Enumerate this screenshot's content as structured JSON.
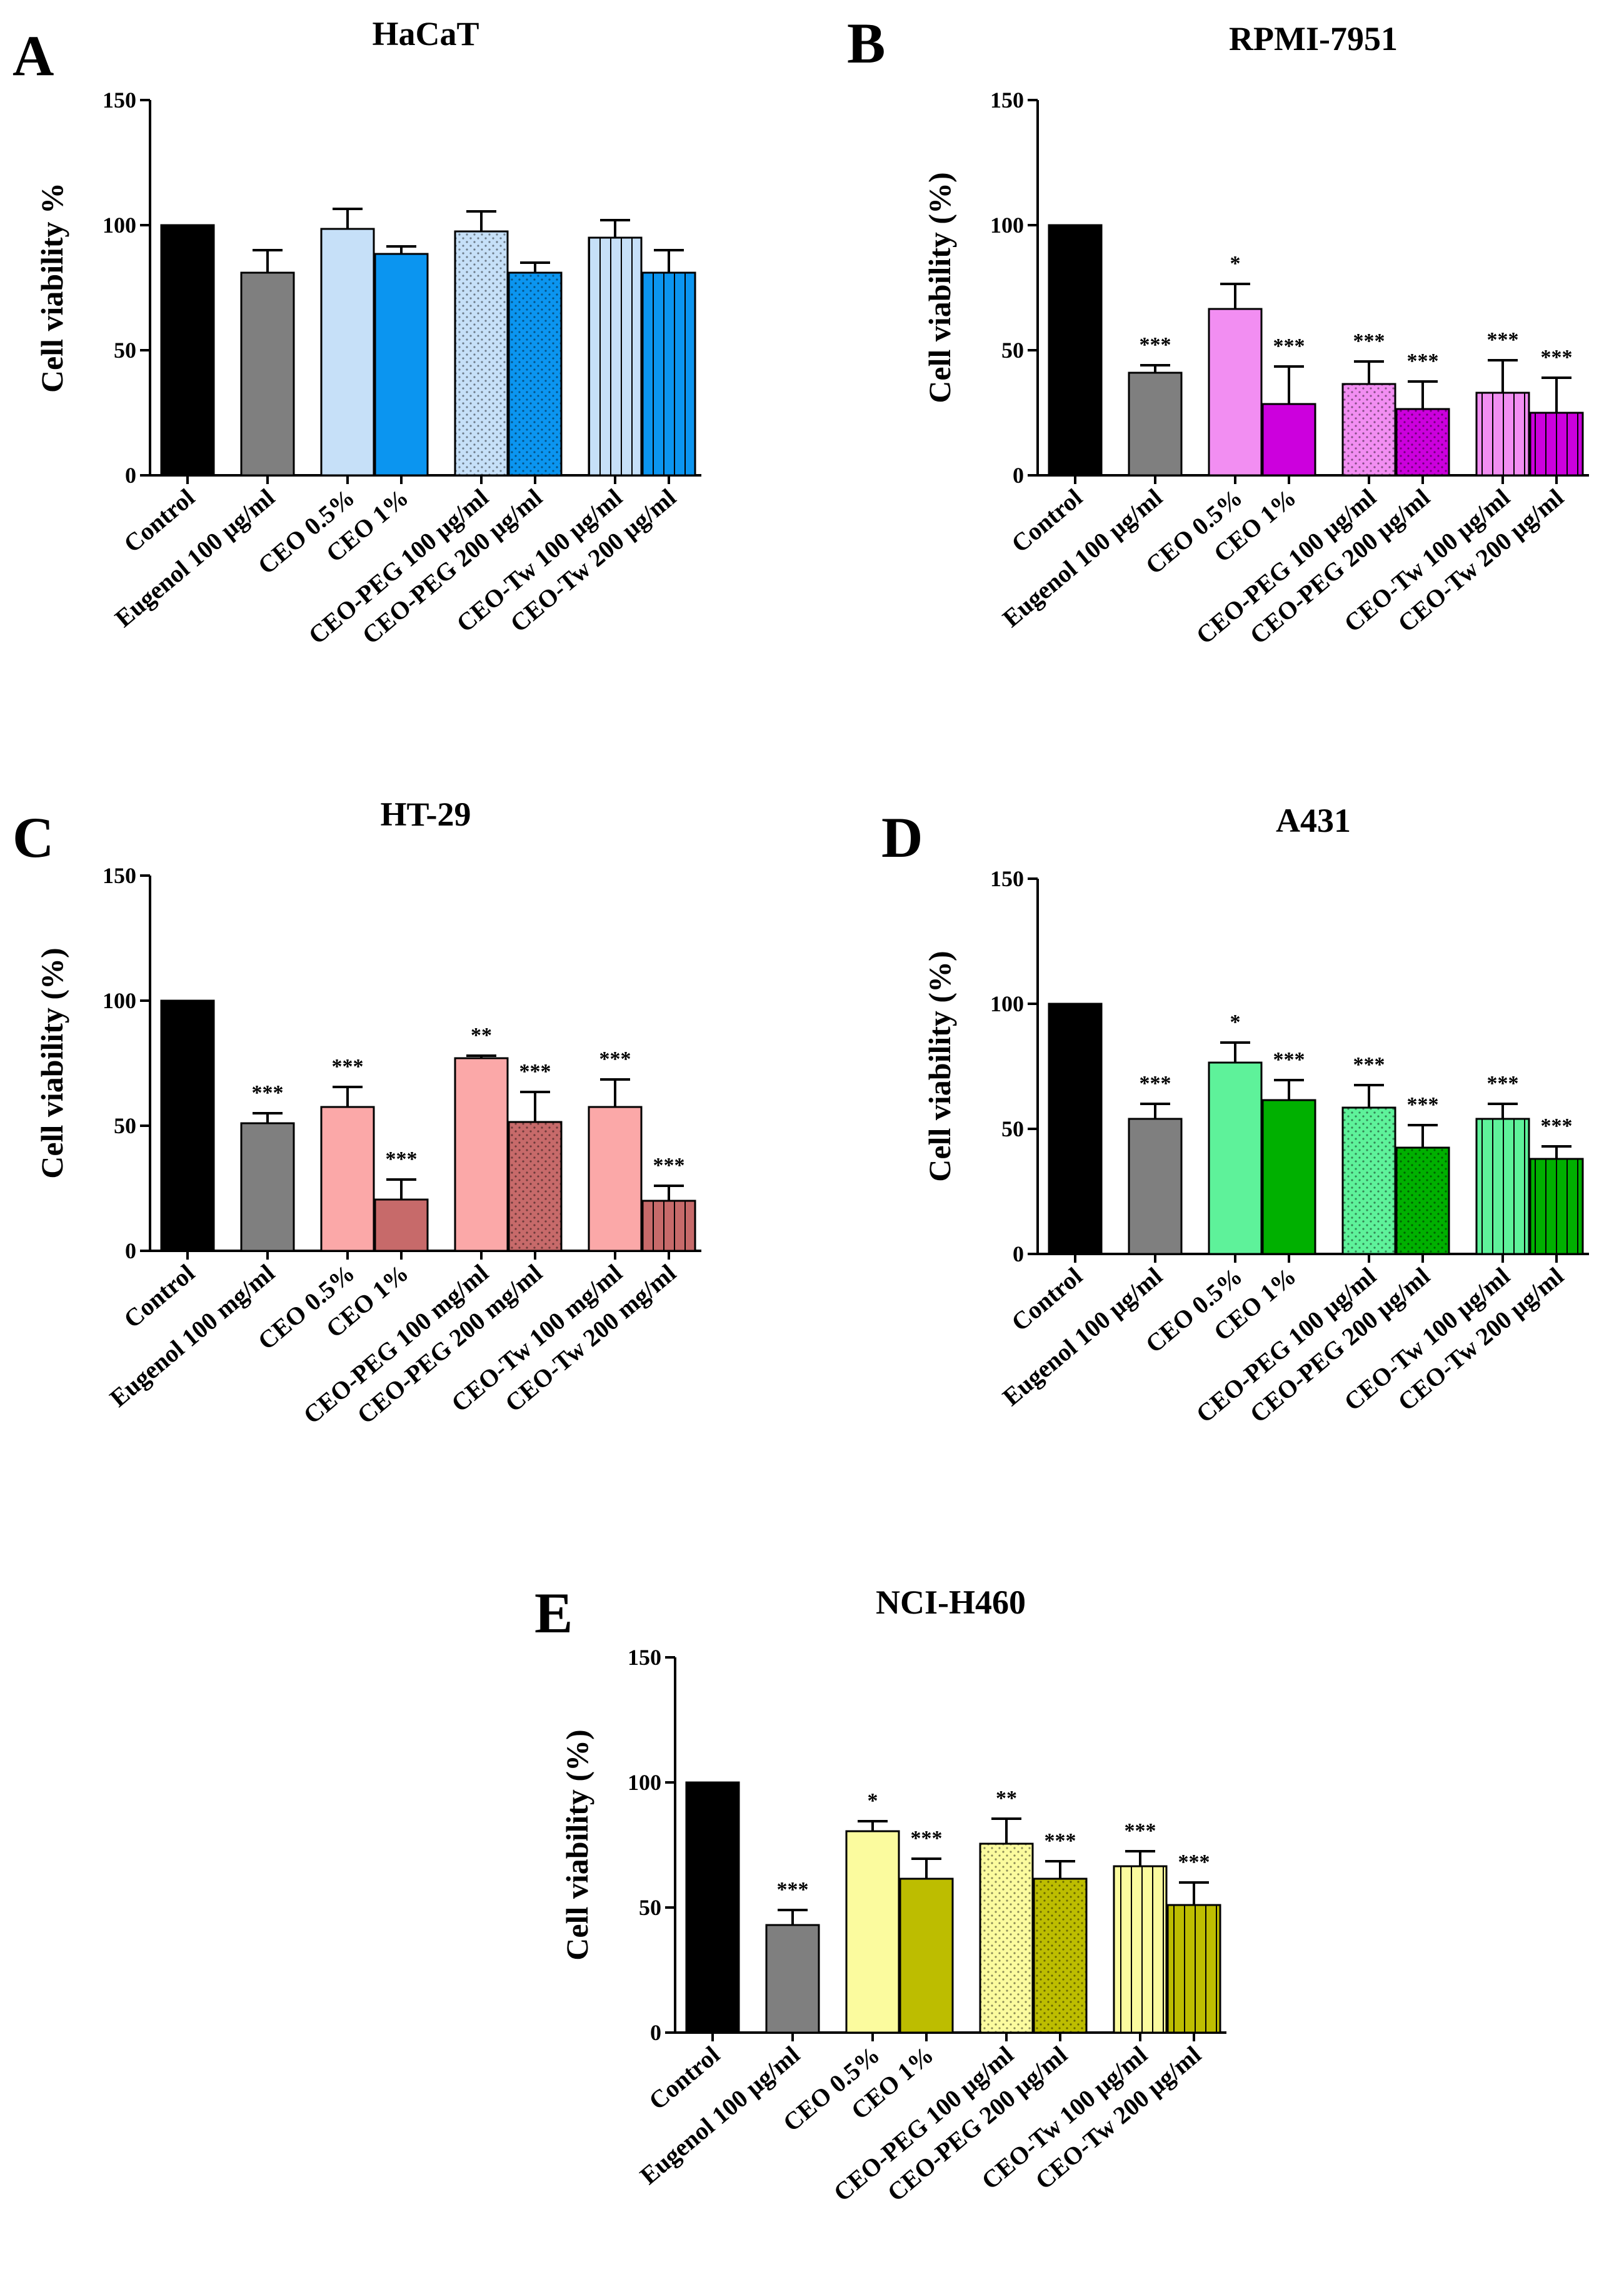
{
  "figure": {
    "panels": [
      "A",
      "B",
      "C",
      "D",
      "E"
    ]
  },
  "chart_data": [
    {
      "panel": "A",
      "type": "bar",
      "title": "HaCaT",
      "ylabel": "Cell viability %",
      "xlabel": "",
      "ylim": [
        0,
        150
      ],
      "yticks": [
        0,
        50,
        100,
        150
      ],
      "grid": false,
      "categories": [
        "Control",
        "Eugenol 100 μg/ml",
        "CEO 0.5%",
        "CEO 1%",
        "CEO-PEG 100  μg/ml",
        "CEO-PEG 200  μg/ml",
        "CEO-Tw 100  μg/ml",
        "CEO-Tw 200 μg/ml"
      ],
      "values": [
        100,
        81,
        98.5,
        88.5,
        97.5,
        81,
        95,
        81
      ],
      "errors": [
        0,
        9,
        8,
        3,
        8,
        4,
        7,
        9
      ],
      "significance": [
        "",
        "",
        "",
        "",
        "",
        "",
        "",
        ""
      ],
      "colors": [
        "#000000",
        "#7f7f7f",
        "#c6e0f8",
        "#0b95f0",
        "#c6e0f8",
        "#0b95f0",
        "#c6e0f8",
        "#0b95f0"
      ],
      "patterns": [
        "solid",
        "solid",
        "solid",
        "solid",
        "dots",
        "dots",
        "vlines",
        "vlines"
      ]
    },
    {
      "panel": "B",
      "type": "bar",
      "title": "RPMI-7951",
      "ylabel": "Cell viability (%)",
      "xlabel": "",
      "ylim": [
        0,
        150
      ],
      "yticks": [
        0,
        50,
        100,
        150
      ],
      "grid": false,
      "categories": [
        "Control",
        "Eugenol 100 μg/ml",
        "CEO 0.5%",
        "CEO 1%",
        "CEO-PEG 100 μg/ml",
        "CEO-PEG 200 μg/ml",
        "CEO-Tw 100 μg/ml",
        "CEO-Tw 200 μg/ml"
      ],
      "values": [
        100,
        41,
        66.5,
        28.5,
        36.5,
        26.5,
        33,
        25
      ],
      "errors": [
        0,
        3,
        10,
        15,
        9,
        11,
        13,
        14
      ],
      "significance": [
        "",
        "***",
        "*",
        "***",
        "***",
        "***",
        "***",
        "***"
      ],
      "colors": [
        "#000000",
        "#7f7f7f",
        "#f28ef2",
        "#cc00dd",
        "#f28ef2",
        "#cc00dd",
        "#f28ef2",
        "#cc00dd"
      ],
      "patterns": [
        "solid",
        "solid",
        "solid",
        "solid",
        "dots",
        "dots",
        "vlines",
        "vlines"
      ]
    },
    {
      "panel": "C",
      "type": "bar",
      "title": "HT-29",
      "ylabel": "Cell viability (%)",
      "xlabel": "",
      "ylim": [
        0,
        150
      ],
      "yticks": [
        0,
        50,
        100,
        150
      ],
      "grid": false,
      "categories": [
        "Control",
        "Eugenol 100 mg/ml",
        "CEO 0.5%",
        "CEO 1%",
        "CEO-PEG 100 mg/ml",
        "CEO-PEG 200 mg/ml",
        "CEO-Tw 100 mg/ml",
        "CEO-Tw 200 mg/ml"
      ],
      "values": [
        100,
        51,
        57.5,
        20.5,
        77,
        51.5,
        57.5,
        20
      ],
      "errors": [
        0,
        4,
        8,
        8,
        1,
        12,
        11,
        6
      ],
      "significance": [
        "",
        "***",
        "***",
        "***",
        "**",
        "***",
        "***",
        "***"
      ],
      "colors": [
        "#000000",
        "#7f7f7f",
        "#fba8a8",
        "#c76a6a",
        "#fba8a8",
        "#c76a6a",
        "#fba8a8",
        "#c76a6a"
      ],
      "patterns": [
        "solid",
        "solid",
        "solid",
        "solid",
        "solid",
        "dots",
        "solid",
        "vlines"
      ]
    },
    {
      "panel": "D",
      "type": "bar",
      "title": "A431",
      "ylabel": "Cell viability (%)",
      "xlabel": "",
      "ylim": [
        0,
        150
      ],
      "yticks": [
        0,
        50,
        100,
        150
      ],
      "grid": false,
      "categories": [
        "Control",
        "Eugenol 100 μg/ml",
        "CEO 0.5%",
        "CEO 1%",
        "CEO-PEG 100 μg/ml",
        "CEO-PEG 200 μg/ml",
        "CEO-Tw 100 μg/ml",
        "CEO-Tw 200 μg/ml"
      ],
      "values": [
        100,
        54,
        76.5,
        61.5,
        58.5,
        42.5,
        54,
        38
      ],
      "errors": [
        0,
        6,
        8,
        8,
        9,
        9,
        6,
        5
      ],
      "significance": [
        "",
        "***",
        "*",
        "***",
        "***",
        "***",
        "***",
        "***"
      ],
      "colors": [
        "#000000",
        "#7f7f7f",
        "#5ef29a",
        "#00b000",
        "#5ef29a",
        "#00b000",
        "#5ef29a",
        "#00b000"
      ],
      "patterns": [
        "solid",
        "solid",
        "solid",
        "solid",
        "dots",
        "dots",
        "vlines",
        "vlines"
      ]
    },
    {
      "panel": "E",
      "type": "bar",
      "title": "NCI-H460",
      "ylabel": "Cell viability (%)",
      "xlabel": "",
      "ylim": [
        0,
        150
      ],
      "yticks": [
        0,
        50,
        100,
        150
      ],
      "grid": false,
      "categories": [
        "Control",
        "Eugenol 100 μg/ml",
        "CEO 0.5%",
        "CEO 1%",
        "CEO-PEG 100 μg/ml",
        "CEO-PEG 200 μg/ml",
        "CEO-Tw 100 μg/ml",
        "CEO-Tw 200 μg/ml"
      ],
      "values": [
        100,
        43,
        80.5,
        61.5,
        75.5,
        61.5,
        66.5,
        51
      ],
      "errors": [
        0,
        6,
        4,
        8,
        10,
        7,
        6,
        9
      ],
      "significance": [
        "",
        "***",
        "*",
        "***",
        "**",
        "***",
        "***",
        "***"
      ],
      "colors": [
        "#000000",
        "#7f7f7f",
        "#fbfb9e",
        "#bdbd00",
        "#fbfb9e",
        "#bdbd00",
        "#fbfb9e",
        "#bdbd00"
      ],
      "patterns": [
        "solid",
        "solid",
        "solid",
        "solid",
        "dots",
        "dots",
        "vlines",
        "vlines"
      ]
    }
  ]
}
